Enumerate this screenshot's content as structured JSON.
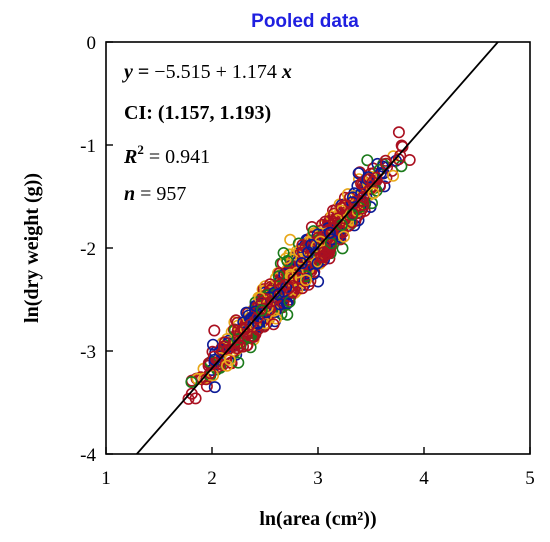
{
  "chart_data": {
    "type": "scatter",
    "title": "Pooled data",
    "xlabel": "ln(area (cm²))",
    "ylabel": "ln(dry weight (g))",
    "xlim": [
      1,
      5
    ],
    "ylim": [
      -4,
      0
    ],
    "xticks": [
      "1",
      "2",
      "3",
      "4",
      "5"
    ],
    "yticks": [
      "-4",
      "-3",
      "-2",
      "-1",
      "0"
    ],
    "grid": false,
    "colors": {
      "title": "#1f1fe0",
      "series": [
        "#e8a81a",
        "#0b1a96",
        "#1b7a1b",
        "#aa1020"
      ],
      "line": "#000000"
    },
    "fit": {
      "intercept": -5.515,
      "slope": 1.174
    },
    "annotations": {
      "equation_lhs": "y",
      "equation_eq": " = ",
      "equation_rhs": "−5.515 + 1.174 ",
      "equation_x": "x",
      "ci_label": "CI: ",
      "ci_value": "(1.157, 1.193)",
      "r2_label": "R",
      "r2_sup": "2",
      "r2_value": " = 0.941",
      "n_label": "n",
      "n_value": " = 957"
    },
    "n_points": 957,
    "point_model": {
      "x_range": [
        1.62,
        3.99
      ],
      "residual_sd": 0.1
    }
  }
}
